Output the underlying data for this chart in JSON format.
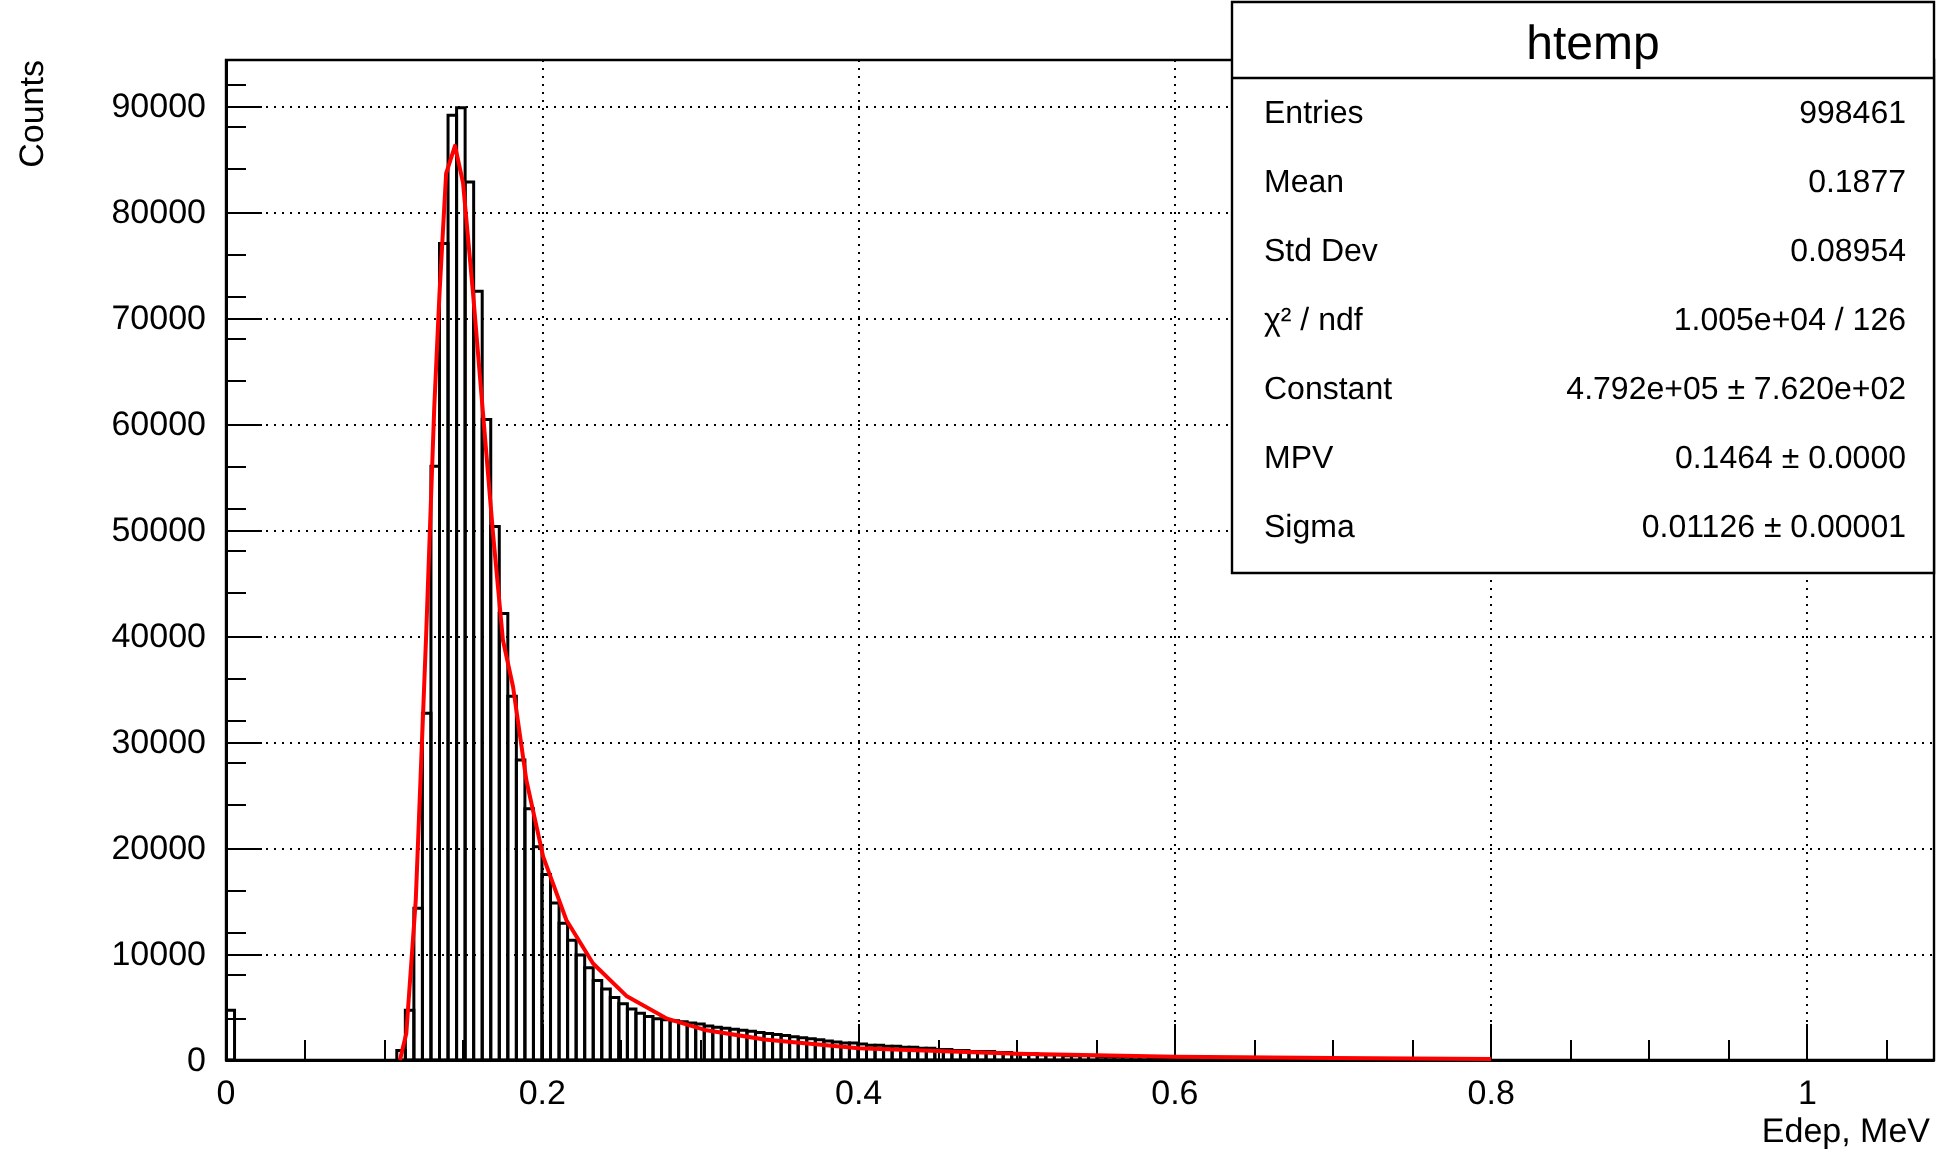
{
  "chart_data": {
    "type": "histogram",
    "title": "htemp",
    "xlabel": "Edep, MeV",
    "ylabel": "Counts",
    "xlim": [
      0,
      1.08
    ],
    "xticks": [
      0,
      0.2,
      0.4,
      0.6,
      0.8,
      1
    ],
    "ylim": [
      0,
      94300
    ],
    "yticks": [
      0,
      10000,
      20000,
      30000,
      40000,
      50000,
      60000,
      70000,
      80000,
      90000
    ],
    "grid": true,
    "bins": [
      0,
      0.0054,
      0.0108,
      0.0162,
      0.0216,
      0.027,
      0.0324,
      0.0378,
      0.0432,
      0.0486,
      0.054,
      0.0594,
      0.0648,
      0.0702,
      0.0756,
      0.081,
      0.0864,
      0.0918,
      0.0972,
      0.1026,
      0.108,
      0.1134,
      0.1188,
      0.1242,
      0.1296,
      0.135,
      0.1404,
      0.1458,
      0.1512,
      0.1566,
      0.162,
      0.1674,
      0.1728,
      0.1782,
      0.1836,
      0.189,
      0.1944,
      0.1998,
      0.2052,
      0.2106,
      0.216,
      0.2214,
      0.2268,
      0.2322,
      0.2376,
      0.243,
      0.2484,
      0.2538,
      0.2592,
      0.2646,
      0.27,
      0.2754,
      0.2808,
      0.2862,
      0.2916,
      0.297,
      0.3024,
      0.3078,
      0.3132,
      0.3186,
      0.324,
      0.3294,
      0.3348,
      0.3402,
      0.3456,
      0.351,
      0.3564,
      0.3618,
      0.3672,
      0.3726,
      0.378,
      0.3834,
      0.3888,
      0.3942,
      0.3996,
      0.405,
      0.4104,
      0.4158,
      0.4212,
      0.4266,
      0.432,
      0.4374,
      0.4428,
      0.4482,
      0.4536,
      0.459,
      0.4644,
      0.4698,
      0.4752,
      0.4806,
      0.486,
      0.4914,
      0.4968,
      0.5022,
      0.5076,
      0.513,
      0.5184,
      0.5238,
      0.5292,
      0.5346,
      0.54,
      0.5454,
      0.5508,
      0.5562,
      0.5616,
      0.567,
      0.5724,
      0.5778,
      0.5832,
      0.5886,
      0.594,
      0.5994,
      0.6048,
      0.6102,
      0.6156,
      0.621,
      0.6264,
      0.6318,
      0.6372,
      0.6426,
      0.648,
      0.6534,
      0.6588,
      0.6642,
      0.6696,
      0.675,
      0.6804,
      0.6858,
      0.6912,
      0.6966,
      0.702,
      0.7074,
      0.7128,
      0.7182,
      0.7236,
      0.729,
      0.7344,
      0.7398,
      0.7452,
      0.7506,
      0.756,
      0.7614,
      0.7668,
      0.7722,
      0.7776,
      0.783,
      0.7884,
      0.7938,
      0.7992,
      0.8046,
      0.81,
      0.8154,
      0.8208,
      0.8262,
      0.8316,
      0.837,
      0.8424,
      0.8478,
      0.8532,
      0.8586,
      0.864,
      0.8694,
      0.8748,
      0.8802,
      0.8856,
      0.891,
      0.8964,
      0.9018,
      0.9072,
      0.9126,
      0.918,
      0.9234,
      0.9288,
      0.9342,
      0.9396,
      0.945,
      0.9504,
      0.9558,
      0.9612,
      0.9666,
      0.972,
      0.9774,
      0.9828,
      0.9882,
      0.9936,
      0.999,
      1.0044,
      1.0098,
      1.0152,
      1.0206,
      1.026,
      1.0314,
      1.0368,
      1.0422,
      1.0476,
      1.053,
      1.0584,
      1.0638,
      1.0692,
      1.0746,
      1.08
    ],
    "series": [
      {
        "type": "histogram",
        "color": "#000000",
        "values": [
          4700,
          0,
          0,
          0,
          0,
          0,
          0,
          0,
          0,
          0,
          0,
          0,
          0,
          0,
          0,
          0,
          0,
          0,
          0,
          0,
          900,
          4700,
          14300,
          32700,
          56000,
          77000,
          89100,
          89800,
          82800,
          72500,
          60400,
          50300,
          42100,
          34300,
          28300,
          23700,
          20100,
          17500,
          14800,
          12900,
          11300,
          9900,
          8700,
          7500,
          6700,
          5900,
          5300,
          4800,
          4400,
          4100,
          3900,
          3800,
          3700,
          3600,
          3500,
          3400,
          3200,
          3100,
          3000,
          2900,
          2800,
          2700,
          2600,
          2500,
          2400,
          2300,
          2200,
          2100,
          2000,
          1900,
          1800,
          1700,
          1600,
          1600,
          1500,
          1400,
          1400,
          1300,
          1300,
          1200,
          1200,
          1100,
          1100,
          1000,
          1000,
          900,
          900,
          800,
          800,
          800,
          700,
          700,
          600,
          600,
          600,
          500,
          500,
          500,
          400,
          400,
          400,
          400,
          300,
          300,
          300,
          300,
          300,
          300,
          200,
          200,
          200,
          200,
          200,
          200,
          200,
          200,
          200,
          200,
          200,
          200,
          200,
          100,
          100,
          100,
          100,
          100,
          100,
          100,
          100,
          100,
          100,
          100,
          100,
          100,
          100,
          100,
          100,
          100,
          100,
          100,
          100,
          100,
          100,
          100,
          100,
          100,
          100,
          100,
          0,
          0,
          0,
          0,
          0,
          0,
          0,
          0,
          0,
          0,
          0,
          0,
          0,
          0,
          0,
          0,
          0,
          0,
          0,
          0,
          0,
          0,
          0,
          0,
          0,
          0,
          0,
          0,
          0,
          0,
          0,
          0,
          0,
          0,
          0,
          0,
          0,
          0,
          0,
          0,
          0,
          0,
          0,
          0,
          0,
          0,
          0,
          0,
          0,
          0,
          0,
          0
        ]
      },
      {
        "type": "line",
        "color": "#ff0000",
        "x": [
          0.11,
          0.114,
          0.12,
          0.1266,
          0.1317,
          0.135,
          0.1392,
          0.1448,
          0.1499,
          0.1562,
          0.1625,
          0.1688,
          0.1751,
          0.1815,
          0.1899,
          0.2005,
          0.2152,
          0.2321,
          0.2535,
          0.2789,
          0.3038,
          0.3422,
          0.4,
          0.5,
          0.6,
          0.7,
          0.8
        ],
        "values": [
          0,
          2500,
          15100,
          40200,
          61600,
          72300,
          83600,
          86200,
          82700,
          72300,
          61000,
          49700,
          39600,
          35200,
          26400,
          19200,
          13200,
          9100,
          6000,
          3900,
          2800,
          1900,
          1100,
          600,
          300,
          200,
          100
        ]
      }
    ],
    "annotations": [
      "Entries",
      "998461",
      "Mean",
      "0.1877",
      "Std Dev",
      "0.08954",
      "χ² / ndf",
      "1.005e+04 / 126",
      "Constant",
      "4.792e+05 ± 7.620e+02",
      "MPV",
      "0.1464 ± 0.0000",
      "Sigma",
      "0.01126 ± 0.00001"
    ]
  }
}
